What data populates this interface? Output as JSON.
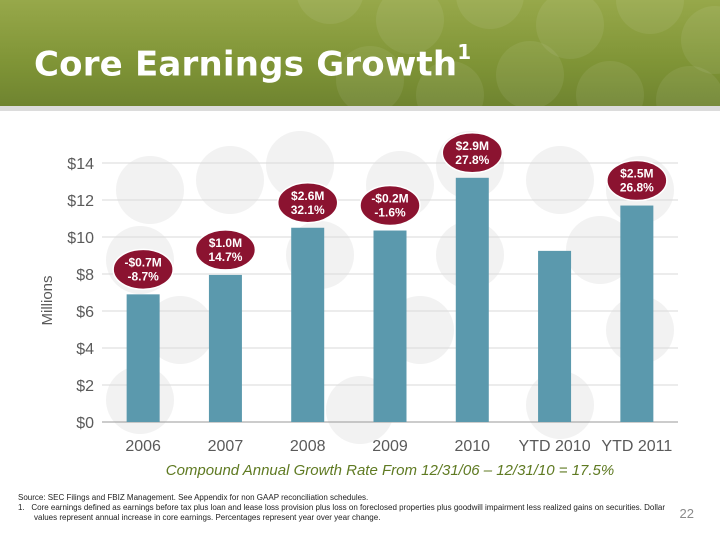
{
  "slide": {
    "title": "Core Earnings Growth",
    "title_superscript": "1",
    "cagr_text": "Compound Annual Growth Rate From 12/31/06 – 12/31/10 = 17.5%",
    "source": "Source: SEC Filings and FBIZ Management. See Appendix for non GAAP reconciliation schedules.",
    "footnote_marker": "1.",
    "footnote": "Core earnings defined as earnings before tax plus loan and lease loss provision plus loss on foreclosed properties plus goodwill impairment less realized gains on securities. Dollar values represent annual increase in core earnings. Percentages represent year over year change.",
    "page_number": "22"
  },
  "colors": {
    "header": "#7f9436",
    "bar": "#5b99ad",
    "callout": "#8b1330",
    "axis_text": "#5a5a5a",
    "cagr_text": "#5f7a22"
  },
  "chart_data": {
    "type": "bar",
    "title": "",
    "xlabel": "",
    "ylabel": "Millions",
    "categories": [
      "2006",
      "2007",
      "2008",
      "2009",
      "2010",
      "YTD 2010",
      "YTD 2011"
    ],
    "values": [
      6.9,
      7.95,
      10.5,
      10.35,
      13.2,
      9.25,
      11.7
    ],
    "ylim": [
      0,
      14
    ],
    "yticks": [
      0,
      2,
      4,
      6,
      8,
      10,
      12,
      14
    ],
    "ytick_labels": [
      "$0",
      "$2",
      "$4",
      "$6",
      "$8",
      "$10",
      "$12",
      "$14"
    ],
    "grid": true,
    "annotations": [
      {
        "category": "2006",
        "lines": [
          "-$0.7M",
          "-8.7%"
        ]
      },
      {
        "category": "2007",
        "lines": [
          "$1.0M",
          "14.7%"
        ]
      },
      {
        "category": "2008",
        "lines": [
          "$2.6M",
          "32.1%"
        ]
      },
      {
        "category": "2009",
        "lines": [
          "-$0.2M",
          "-1.6%"
        ]
      },
      {
        "category": "2010",
        "lines": [
          "$2.9M",
          "27.8%"
        ]
      },
      {
        "category": "YTD 2011",
        "lines": [
          "$2.5M",
          "26.8%"
        ]
      }
    ]
  }
}
